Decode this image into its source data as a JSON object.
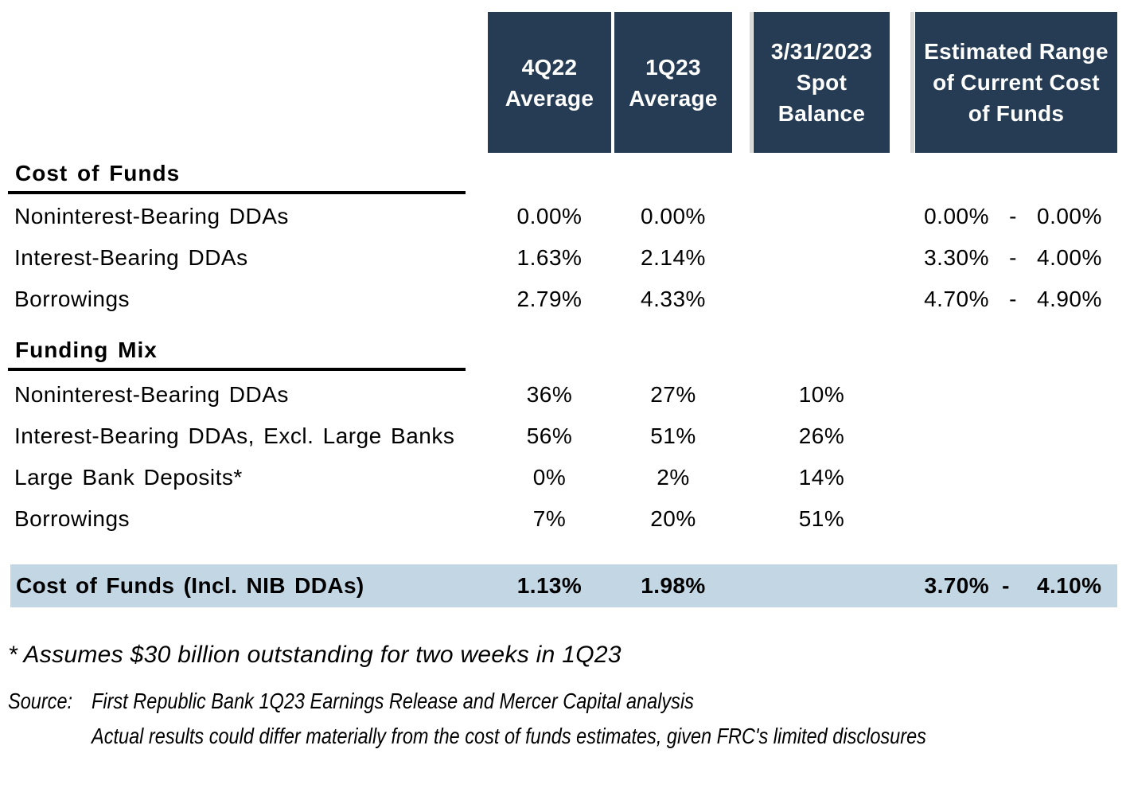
{
  "colors": {
    "header_bg": "#253C54",
    "highlight_bg": "#C3D6E4",
    "rule": "#000000",
    "header_divider": "#D8D8D8"
  },
  "columns": {
    "col1": "4Q22\nAverage",
    "col2": "1Q23\nAverage",
    "col3": "3/31/2023\nSpot\nBalance",
    "col4": "Estimated Range\nof Current Cost\nof Funds"
  },
  "sections": [
    {
      "title": "Cost of Funds",
      "rows": [
        {
          "label": "Noninterest-Bearing DDAs",
          "q4_22": "0.00%",
          "q1_23": "0.00%",
          "spot": "",
          "range_low": "0.00%",
          "dash": "-",
          "range_high": "0.00%"
        },
        {
          "label": "Interest-Bearing DDAs",
          "q4_22": "1.63%",
          "q1_23": "2.14%",
          "spot": "",
          "range_low": "3.30%",
          "dash": "-",
          "range_high": "4.00%"
        },
        {
          "label": "Borrowings",
          "q4_22": "2.79%",
          "q1_23": "4.33%",
          "spot": "",
          "range_low": "4.70%",
          "dash": "-",
          "range_high": "4.90%"
        }
      ]
    },
    {
      "title": "Funding Mix",
      "rows": [
        {
          "label": "Noninterest-Bearing DDAs",
          "q4_22": "36%",
          "q1_23": "27%",
          "spot": "10%"
        },
        {
          "label": "Interest-Bearing DDAs, Excl. Large Banks",
          "q4_22": "56%",
          "q1_23": "51%",
          "spot": "26%"
        },
        {
          "label": "Large Bank Deposits*",
          "q4_22": "0%",
          "q1_23": "2%",
          "spot": "14%"
        },
        {
          "label": "Borrowings",
          "q4_22": "7%",
          "q1_23": "20%",
          "spot": "51%"
        }
      ]
    }
  ],
  "summary": {
    "label": "Cost of Funds (Incl. NIB DDAs)",
    "q4_22": "1.13%",
    "q1_23": "1.98%",
    "spot": "",
    "range_low": "3.70%",
    "dash": "-",
    "range_high": "4.10%"
  },
  "footnotes": {
    "asterisk": "* Assumes $30 billion outstanding for two weeks in 1Q23",
    "source_label": "Source:",
    "source_text": "First Republic Bank 1Q23 Earnings Release and Mercer Capital analysis",
    "source_text2": "Actual results could differ materially from the cost of funds estimates, given FRC's limited disclosures"
  }
}
